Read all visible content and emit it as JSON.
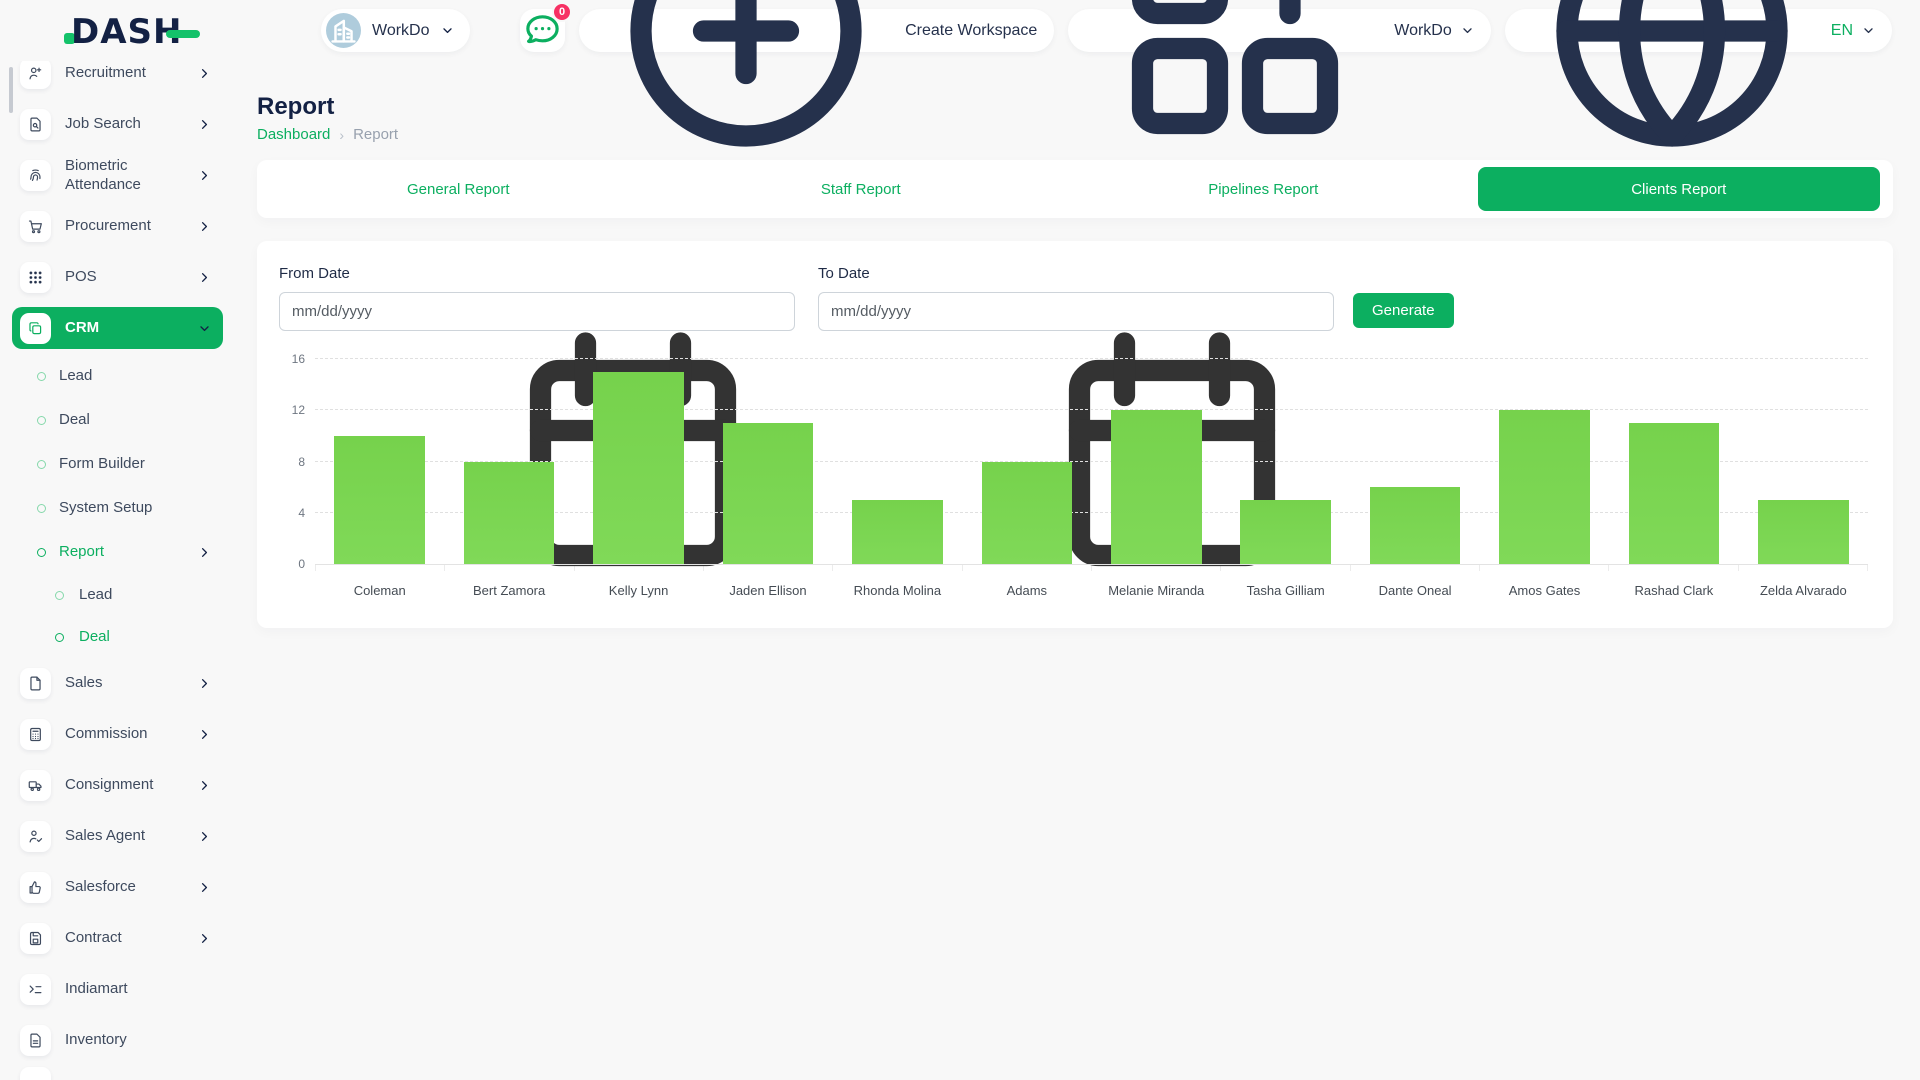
{
  "brand": {
    "logo_text": "DASH"
  },
  "header": {
    "workspace_switcher": {
      "label": "WorkDo"
    },
    "messages_badge": "0",
    "create_workspace_label": "Create Workspace",
    "account_menu_label": "WorkDo",
    "language_label": "EN"
  },
  "sidebar": {
    "items": [
      {
        "id": "recruitment",
        "label": "Recruitment",
        "icon": "user-plus-icon",
        "level": 0,
        "chevron": "right"
      },
      {
        "id": "job-search",
        "label": "Job Search",
        "icon": "file-search-icon",
        "level": 0,
        "chevron": "right"
      },
      {
        "id": "biometric-attendance",
        "label": "Biometric Attendance",
        "icon": "fingerprint-icon",
        "level": 0,
        "chevron": "right"
      },
      {
        "id": "procurement",
        "label": "Procurement",
        "icon": "cart-icon",
        "level": 0,
        "chevron": "right"
      },
      {
        "id": "pos",
        "label": "POS",
        "icon": "grid-dots-icon",
        "level": 0,
        "chevron": "right"
      },
      {
        "id": "crm",
        "label": "CRM",
        "icon": "copy-icon",
        "level": 0,
        "chevron": "down",
        "active": true
      },
      {
        "id": "crm-lead",
        "label": "Lead",
        "level": 1
      },
      {
        "id": "crm-deal",
        "label": "Deal",
        "level": 1
      },
      {
        "id": "crm-form-builder",
        "label": "Form Builder",
        "level": 1
      },
      {
        "id": "crm-system-setup",
        "label": "System Setup",
        "level": 1
      },
      {
        "id": "crm-report",
        "label": "Report",
        "level": 1,
        "chevron": "right",
        "highlight": true
      },
      {
        "id": "crm-report-lead",
        "label": "Lead",
        "level": 2
      },
      {
        "id": "crm-report-deal",
        "label": "Deal",
        "level": 2,
        "highlight": true
      },
      {
        "id": "sales",
        "label": "Sales",
        "icon": "file-icon",
        "level": 0,
        "chevron": "right"
      },
      {
        "id": "commission",
        "label": "Commission",
        "icon": "calculator-icon",
        "level": 0,
        "chevron": "right"
      },
      {
        "id": "consignment",
        "label": "Consignment",
        "icon": "truck-icon",
        "level": 0,
        "chevron": "right"
      },
      {
        "id": "sales-agent",
        "label": "Sales Agent",
        "icon": "user-check-icon",
        "level": 0,
        "chevron": "right"
      },
      {
        "id": "salesforce",
        "label": "Salesforce",
        "icon": "thumbs-up-icon",
        "level": 0,
        "chevron": "right"
      },
      {
        "id": "contract",
        "label": "Contract",
        "icon": "save-icon",
        "level": 0,
        "chevron": "right"
      },
      {
        "id": "indiamart",
        "label": "Indiamart",
        "icon": "terminal-list-icon",
        "level": 0
      },
      {
        "id": "inventory",
        "label": "Inventory",
        "icon": "file-text-icon",
        "level": 0
      }
    ]
  },
  "page": {
    "title": "Report",
    "breadcrumb": {
      "link": "Dashboard",
      "separator": "›",
      "current": "Report"
    }
  },
  "tabs": [
    {
      "label": "General Report",
      "active": false
    },
    {
      "label": "Staff Report",
      "active": false
    },
    {
      "label": "Pipelines Report",
      "active": false
    },
    {
      "label": "Clients Report",
      "active": true
    }
  ],
  "filters": {
    "from_label": "From Date",
    "to_label": "To Date",
    "date_placeholder": "mm/dd/yyyy",
    "generate_label": "Generate"
  },
  "chart_data": {
    "type": "bar",
    "title": "",
    "categories": [
      "Coleman",
      "Bert Zamora",
      "Kelly Lynn",
      "Jaden Ellison",
      "Rhonda Molina",
      "Adams",
      "Melanie Miranda",
      "Tasha Gilliam",
      "Dante Oneal",
      "Amos Gates",
      "Rashad Clark",
      "Zelda Alvarado"
    ],
    "values": [
      10,
      8,
      15,
      11,
      5,
      8,
      12,
      5,
      6,
      12,
      11,
      5
    ],
    "xlabel": "",
    "ylabel": "",
    "ylim": [
      0,
      16
    ],
    "yticks": [
      0,
      4,
      8,
      12,
      16
    ],
    "grid": "horizontal-dashed",
    "legend": "none",
    "bar_color": "#77d450"
  },
  "colors": {
    "primary": "#0caf60",
    "bar": "#77d450",
    "badge": "#f73164",
    "heading": "#132144",
    "muted": "#98a1ae"
  }
}
